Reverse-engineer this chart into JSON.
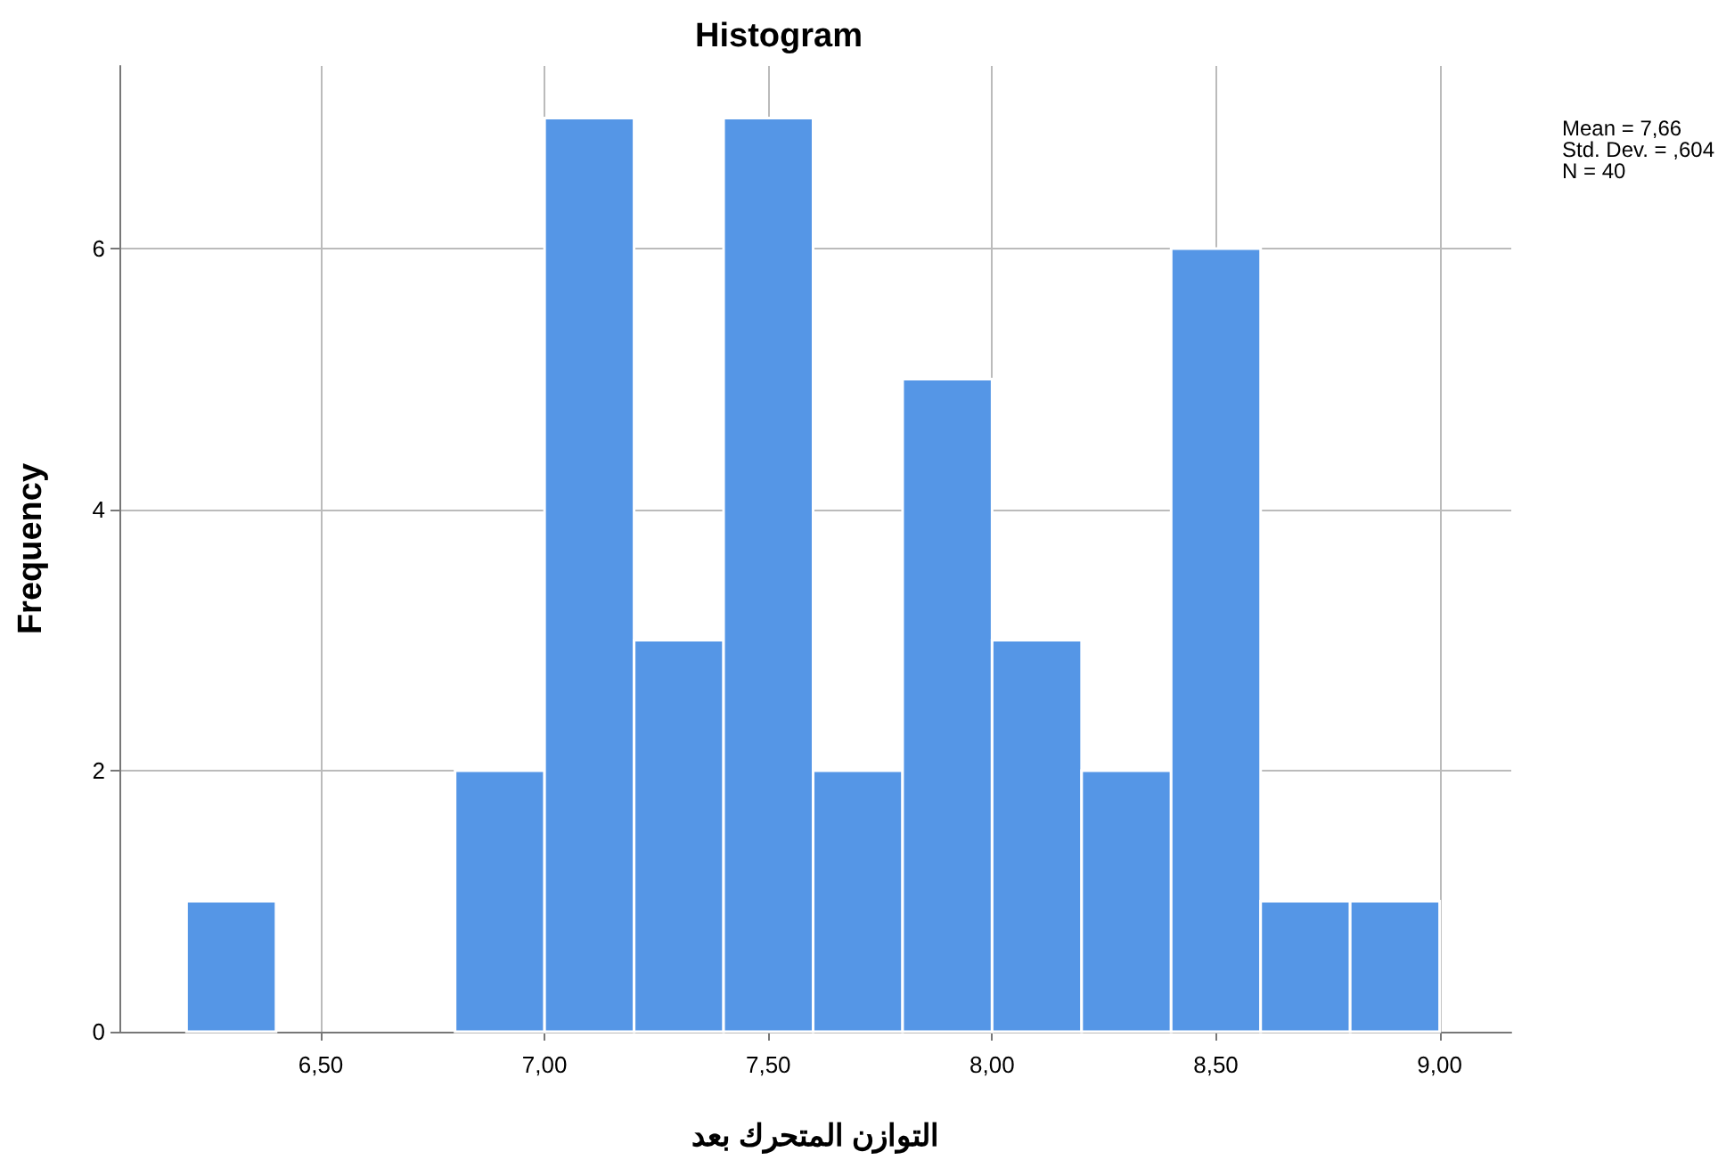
{
  "chart_data": {
    "type": "histogram",
    "title": "Histogram",
    "xlabel": "التوازن المتحرك بعد",
    "ylabel": "Frequency",
    "bins": [
      6.2,
      6.4,
      6.6,
      6.8,
      7.0,
      7.2,
      7.4,
      7.6,
      7.8,
      8.0,
      8.2,
      8.4,
      8.6,
      8.8,
      9.0
    ],
    "values": [
      1,
      0,
      0,
      2,
      7,
      3,
      7,
      2,
      5,
      3,
      2,
      6,
      1,
      1
    ],
    "color": "#5596e6",
    "xlim": [
      6.05,
      9.16
    ],
    "xticks": [
      {
        "value": 6.5,
        "label": "6,50"
      },
      {
        "value": 7.0,
        "label": "7,00"
      },
      {
        "value": 7.5,
        "label": "7,50"
      },
      {
        "value": 8.0,
        "label": "8,00"
      },
      {
        "value": 8.5,
        "label": "8,50"
      },
      {
        "value": 9.0,
        "label": "9,00"
      }
    ],
    "ylim": [
      0,
      7.4
    ],
    "yticks": [
      0,
      2,
      4,
      6
    ],
    "grid": true,
    "annotations": [
      "Mean = 7,66\nStd. Dev. = ,604\nN = 40"
    ]
  }
}
